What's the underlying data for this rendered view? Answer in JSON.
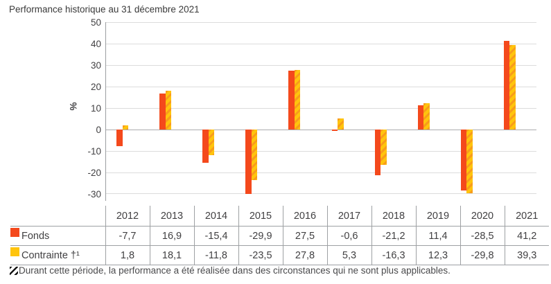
{
  "title": "Performance historique au 31 décembre 2021",
  "colors": {
    "fonds": "#f4491c",
    "contrainte": "#ffc40d",
    "contrainte_stripe": "#f89c1b",
    "grid": "#dcdcdc",
    "zero_line": "#acacae",
    "axis": "#9b9da0",
    "table_border": "#9da0a3",
    "text": "#414042"
  },
  "chart_data": {
    "type": "bar",
    "title": "Performance historique au 31 décembre 2021",
    "xlabel": "",
    "ylabel": "%",
    "ylim": [
      -30,
      50
    ],
    "ytick_step": 10,
    "grid": true,
    "legend_position": "table-below",
    "categories": [
      "2012",
      "2013",
      "2014",
      "2015",
      "2016",
      "2017",
      "2018",
      "2019",
      "2020",
      "2021"
    ],
    "series": [
      {
        "name": "Fonds",
        "style": "solid-orange",
        "values": [
          -7.7,
          16.9,
          -15.4,
          -29.9,
          27.5,
          -0.6,
          -21.2,
          11.4,
          -28.5,
          41.2
        ]
      },
      {
        "name": "Contrainte †¹",
        "style": "yellow-orange-hatched",
        "values": [
          1.8,
          18.1,
          -11.8,
          -23.5,
          27.8,
          5.3,
          -16.3,
          12.3,
          -29.8,
          39.3
        ]
      }
    ]
  },
  "table": {
    "col_headers": [
      "",
      "2012",
      "2013",
      "2014",
      "2015",
      "2016",
      "2017",
      "2018",
      "2019",
      "2020",
      "2021"
    ],
    "rows": [
      {
        "label": "Fonds",
        "swatch": "fonds",
        "values": [
          "-7,7",
          "16,9",
          "-15,4",
          "-29,9",
          "27,5",
          "-0,6",
          "-21,2",
          "11,4",
          "-28,5",
          "41,2"
        ]
      },
      {
        "label": "Contrainte †¹",
        "swatch": "contrainte",
        "values": [
          "1,8",
          "18,1",
          "-11,8",
          "-23,5",
          "27,8",
          "5,3",
          "-16,3",
          "12,3",
          "-29,8",
          "39,3"
        ]
      }
    ]
  },
  "footnote": {
    "icon": "hatch-square-icon",
    "text": "Durant cette période, la performance a été réalisée dans des circonstances qui ne sont plus applicables."
  }
}
